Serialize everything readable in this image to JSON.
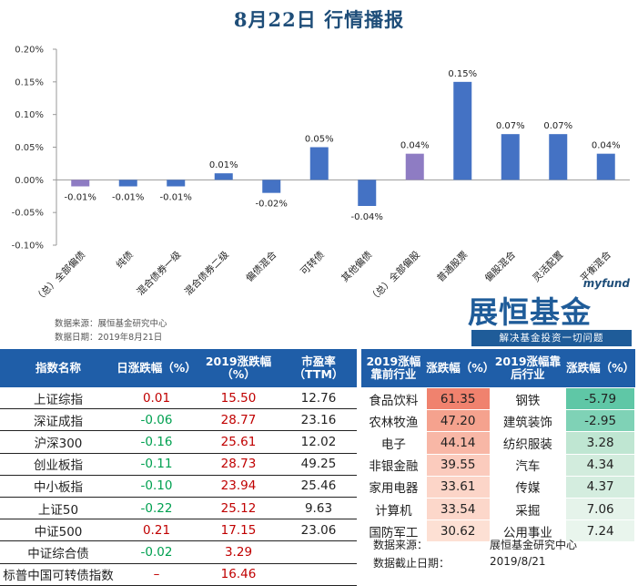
{
  "header": {
    "title": "8月22日  行情播报"
  },
  "chart_data": {
    "type": "bar",
    "categories": [
      "（总）全部偏债",
      "纯债",
      "混合债券一级",
      "混合债券二级",
      "偏债混合",
      "可转债",
      "其他偏债",
      "（总）全部偏股",
      "普通股票",
      "偏股混合",
      "灵活配置",
      "平衡混合"
    ],
    "values": [
      -0.01,
      -0.01,
      -0.01,
      0.01,
      -0.02,
      0.05,
      -0.04,
      0.04,
      0.15,
      0.07,
      0.07,
      0.04
    ],
    "highlight": [
      true,
      false,
      false,
      false,
      false,
      false,
      false,
      true,
      false,
      false,
      false,
      false
    ],
    "data_labels": [
      "-0.01%",
      "-0.01%",
      "-0.01%",
      "0.01%",
      "-0.02%",
      "0.05%",
      "-0.04%",
      "0.04%",
      "0.15%",
      "0.07%",
      "0.07%",
      "0.04%"
    ],
    "ytick_labels": [
      "0.20%",
      "0.15%",
      "0.10%",
      "0.05%",
      "0.00%",
      "-0.05%",
      "-0.10%"
    ],
    "yticks": [
      0.2,
      0.15,
      0.1,
      0.05,
      0.0,
      -0.05,
      -0.1
    ],
    "ylim": [
      -0.1,
      0.2
    ],
    "grid": false,
    "colors": {
      "bar": "#4472c4",
      "highlight": "#8e7cc3",
      "axis": "#999999"
    }
  },
  "source": {
    "line1": "数据来源：展恒基金研究中心",
    "line2": "数据日期：2019年8月21日"
  },
  "logo": {
    "myfund": "myfund",
    "brand": "展恒基金",
    "slogan": "解决基金投资一切问题"
  },
  "index_table": {
    "headers": [
      "指数名称",
      "日涨跌幅（%）",
      "2019涨跌幅（%）",
      "市盈率（TTM）"
    ],
    "rows": [
      {
        "name": "上证综指",
        "day": "0.01",
        "ytd": "15.50",
        "pe": "12.76",
        "dir": "up"
      },
      {
        "name": "深证成指",
        "day": "-0.06",
        "ytd": "28.77",
        "pe": "23.16",
        "dir": "down"
      },
      {
        "name": "沪深300",
        "day": "-0.16",
        "ytd": "25.61",
        "pe": "12.02",
        "dir": "down"
      },
      {
        "name": "创业板指",
        "day": "-0.11",
        "ytd": "28.73",
        "pe": "49.25",
        "dir": "down"
      },
      {
        "name": "中小板指",
        "day": "-0.10",
        "ytd": "23.94",
        "pe": "25.46",
        "dir": "down"
      },
      {
        "name": "上证50",
        "day": "-0.22",
        "ytd": "25.12",
        "pe": "9.63",
        "dir": "down"
      },
      {
        "name": "中证500",
        "day": "0.21",
        "ytd": "17.15",
        "pe": "23.06",
        "dir": "up"
      },
      {
        "name": "中证综合债",
        "day": "-0.02",
        "ytd": "3.29",
        "pe": "",
        "dir": "down"
      },
      {
        "name": "标普中国可转债指数",
        "day": "–",
        "ytd": "16.46",
        "pe": "",
        "dir": "up"
      }
    ]
  },
  "industry_table": {
    "headers": [
      "2019涨幅靠前行业",
      "涨跌幅（%）",
      "2019涨幅靠后行业",
      "涨跌幅（%）"
    ],
    "rows": [
      {
        "top": "食品饮料",
        "top_val": "61.35",
        "bottom": "钢铁",
        "bottom_val": "-5.79"
      },
      {
        "top": "农林牧渔",
        "top_val": "47.20",
        "bottom": "建筑装饰",
        "bottom_val": "-2.95"
      },
      {
        "top": "电子",
        "top_val": "44.14",
        "bottom": "纺织服装",
        "bottom_val": "3.28"
      },
      {
        "top": "非银金融",
        "top_val": "39.55",
        "bottom": "汽车",
        "bottom_val": "4.34"
      },
      {
        "top": "家用电器",
        "top_val": "33.61",
        "bottom": "传媒",
        "bottom_val": "4.37"
      },
      {
        "top": "计算机",
        "top_val": "33.54",
        "bottom": "采掘",
        "bottom_val": "7.06"
      },
      {
        "top": "国防军工",
        "top_val": "30.62",
        "bottom": "公用事业",
        "bottom_val": "7.24"
      }
    ],
    "top_colors": [
      "#f0826e",
      "#f5a28e",
      "#f8b7a6",
      "#fbcbbd",
      "#fcd5c8",
      "#fcd7ca",
      "#fde0d4"
    ],
    "bottom_colors": [
      "#5fc7a6",
      "#7fd2b6",
      "#bfe6d2",
      "#d2ecdd",
      "#d4eddf",
      "#e5f3ea",
      "#e9f5ed"
    ],
    "footer_label1": "数据来源：",
    "footer_value1": "展恒基金研究中心",
    "footer_label2": "数据截止日期：",
    "footer_value2": "2019/8/21"
  }
}
